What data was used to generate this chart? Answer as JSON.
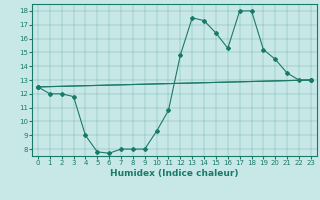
{
  "xlabel": "Humidex (Indice chaleur)",
  "ylabel": "",
  "background_color": "#c8e8e8",
  "line_color": "#1a7a6a",
  "xlim": [
    -0.5,
    23.5
  ],
  "ylim": [
    7.5,
    18.5
  ],
  "xticks": [
    0,
    1,
    2,
    3,
    4,
    5,
    6,
    7,
    8,
    9,
    10,
    11,
    12,
    13,
    14,
    15,
    16,
    17,
    18,
    19,
    20,
    21,
    22,
    23
  ],
  "yticks": [
    8,
    9,
    10,
    11,
    12,
    13,
    14,
    15,
    16,
    17,
    18
  ],
  "series": [
    {
      "x": [
        0,
        1,
        2,
        3,
        4,
        5,
        6,
        7,
        8,
        9,
        10,
        11,
        12,
        13,
        14,
        15,
        16,
        17,
        18,
        19,
        20,
        21,
        22,
        23
      ],
      "y": [
        12.5,
        12.0,
        12.0,
        11.8,
        9.0,
        7.8,
        7.7,
        8.0,
        8.0,
        8.0,
        9.3,
        10.8,
        14.8,
        17.5,
        17.3,
        16.4,
        15.3,
        18.0,
        18.0,
        15.2,
        14.5,
        13.5,
        13.0,
        13.0
      ]
    },
    {
      "x": [
        0,
        23
      ],
      "y": [
        12.5,
        13.0
      ]
    },
    {
      "x": [
        0,
        23
      ],
      "y": [
        12.5,
        13.0
      ]
    }
  ],
  "xlabel_fontsize": 6.5,
  "tick_fontsize": 5.0
}
